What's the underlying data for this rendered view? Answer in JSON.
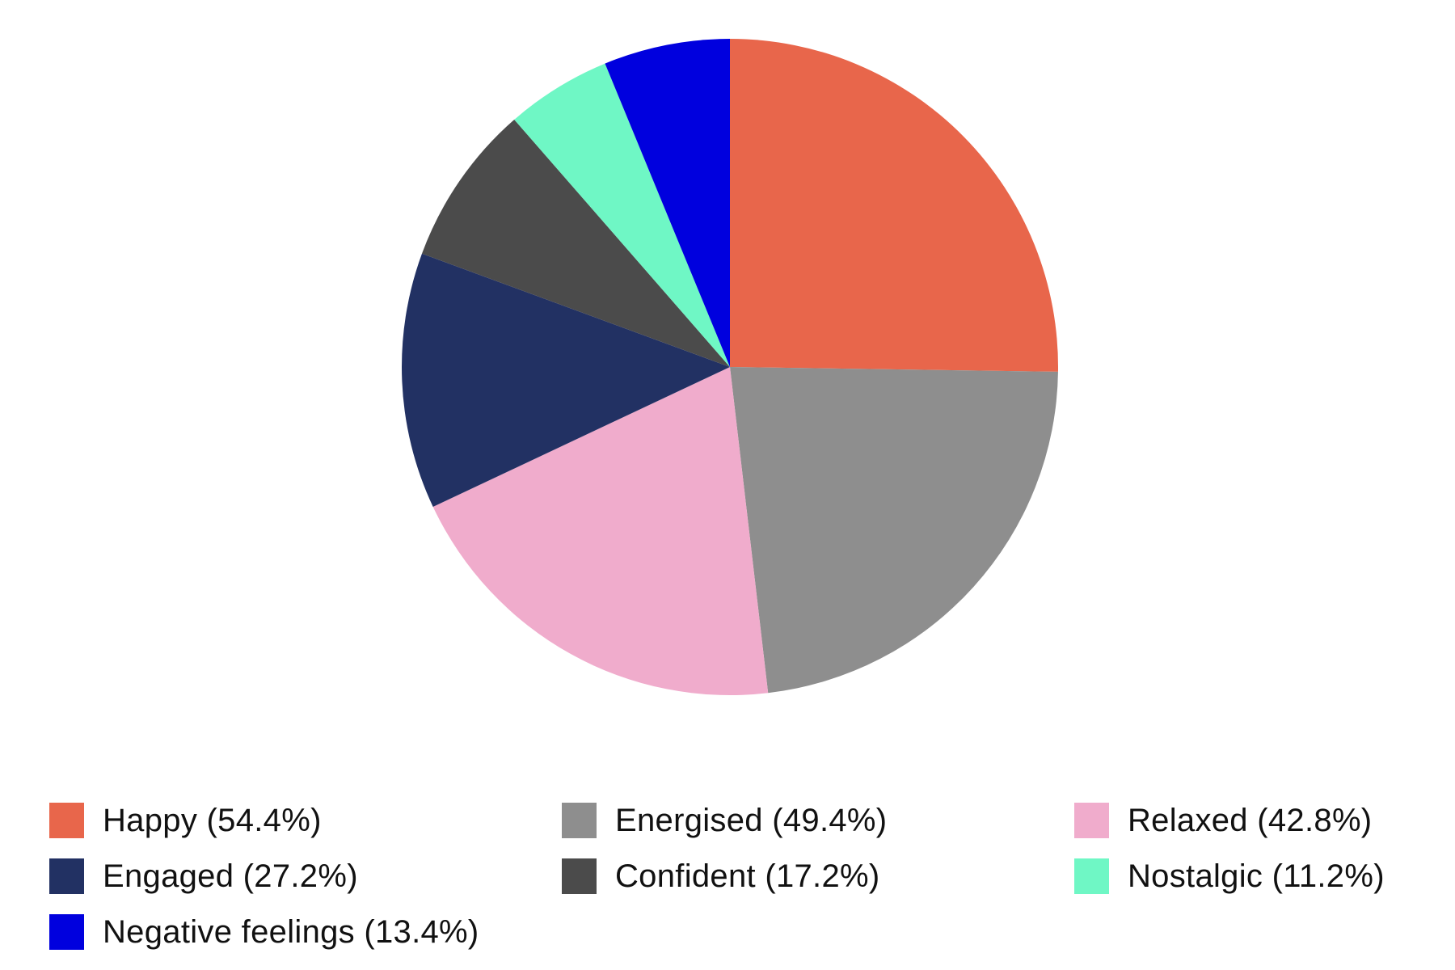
{
  "chart_data": {
    "type": "pie",
    "title": "",
    "start_angle": "top, clockwise",
    "legend_position": "bottom",
    "slices": [
      {
        "label": "Happy (54.4%)",
        "name": "Happy",
        "value": 54.4,
        "color": "#E8664B"
      },
      {
        "label": "Energised (49.4%)",
        "name": "Energised",
        "value": 49.4,
        "color": "#8E8E8E"
      },
      {
        "label": "Relaxed (42.8%)",
        "name": "Relaxed",
        "value": 42.8,
        "color": "#F0ACCC"
      },
      {
        "label": "Engaged (27.2%)",
        "name": "Engaged",
        "value": 27.2,
        "color": "#223163"
      },
      {
        "label": "Confident (17.2%)",
        "name": "Confident",
        "value": 17.2,
        "color": "#4B4B4B"
      },
      {
        "label": "Nostalgic (11.2%)",
        "name": "Nostalgic",
        "value": 11.2,
        "color": "#6FF7C5"
      },
      {
        "label": "Negative feelings (13.4%)",
        "name": "Negative feelings",
        "value": 13.4,
        "color": "#0000DE"
      }
    ]
  }
}
